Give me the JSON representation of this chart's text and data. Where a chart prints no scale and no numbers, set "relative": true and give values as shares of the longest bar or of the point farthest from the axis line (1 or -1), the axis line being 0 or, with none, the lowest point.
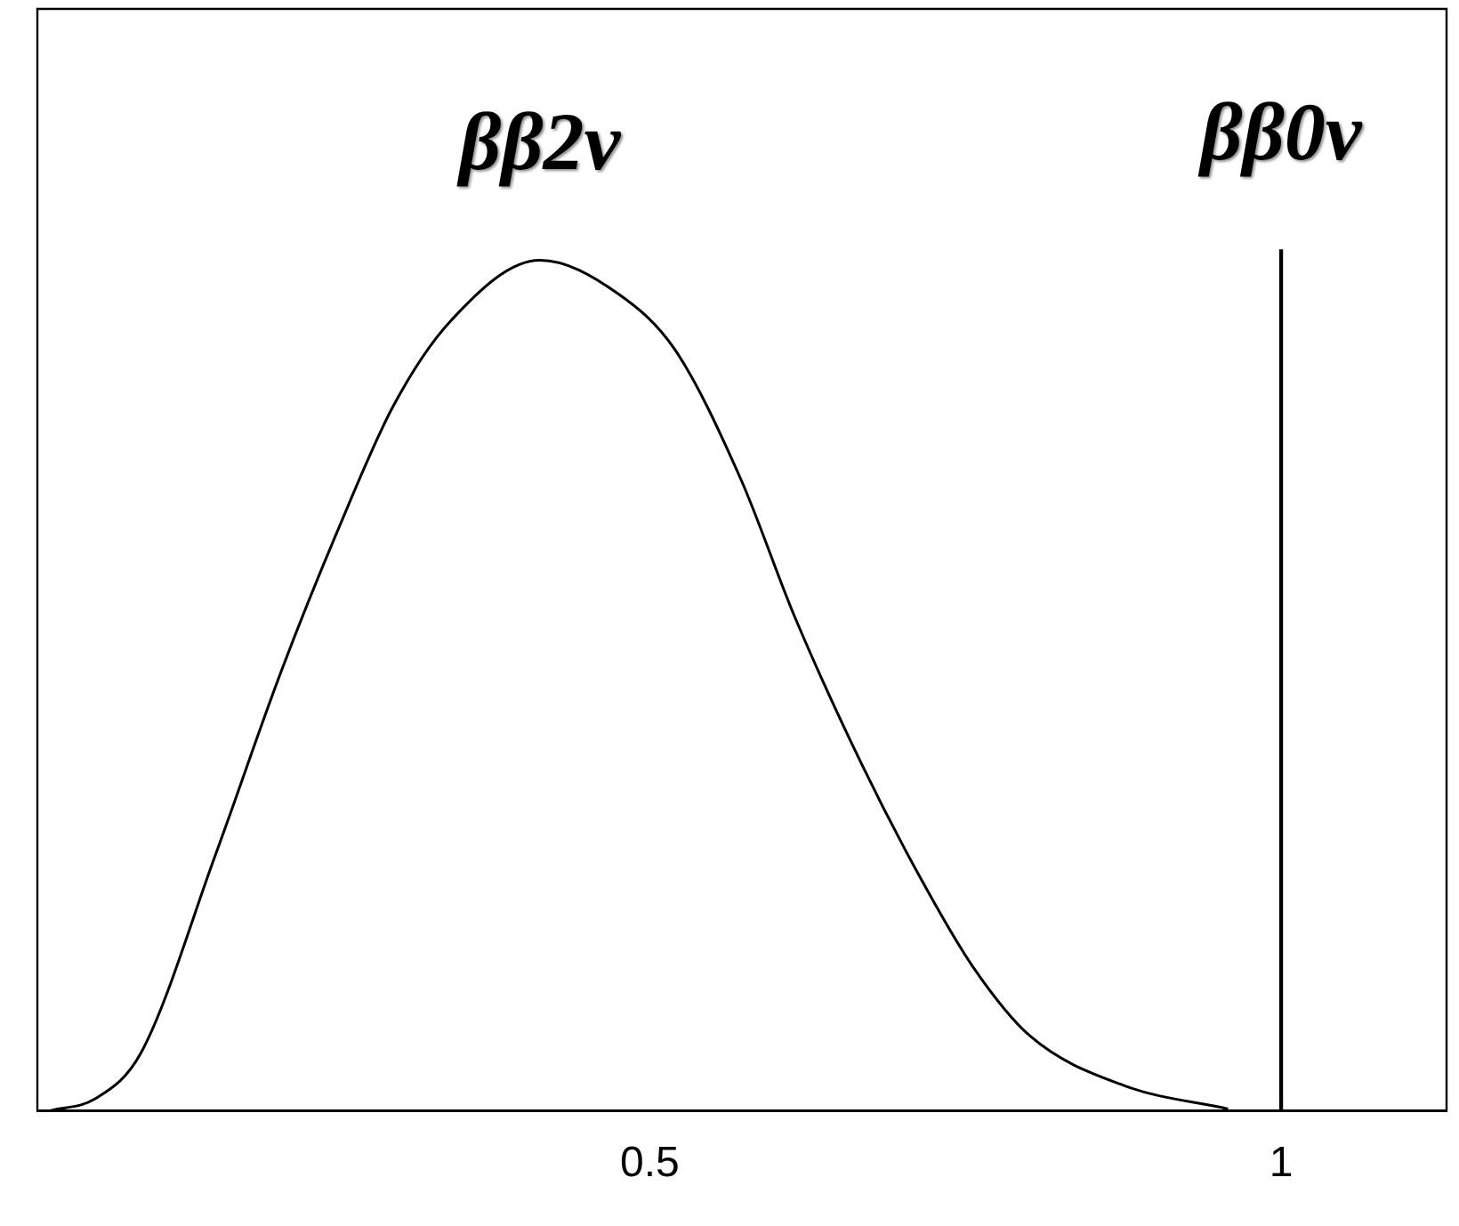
{
  "chart_data": {
    "type": "line",
    "relative": true,
    "xlim": [
      0.015,
      1.131
    ],
    "xticks": [
      0.5,
      1
    ],
    "series": [
      {
        "name": "ββ2ν",
        "color": "#000000",
        "x": [
          0.025,
          0.061,
          0.097,
          0.156,
          0.208,
          0.252,
          0.297,
          0.342,
          0.413,
          0.475,
          0.52,
          0.572,
          0.615,
          0.668,
          0.713,
          0.756,
          0.801,
          0.876,
          0.958
        ],
        "values": [
          0,
          0.014,
          0.067,
          0.297,
          0.51,
          0.671,
          0.819,
          0.917,
          0.988,
          0.949,
          0.884,
          0.734,
          0.573,
          0.402,
          0.274,
          0.167,
          0.087,
          0.029,
          0.002
        ]
      },
      {
        "name": "ββ0ν",
        "type": "bar",
        "color": "#000000",
        "x": [
          1
        ],
        "values": [
          1
        ]
      }
    ],
    "grid": false,
    "legend": false,
    "marker": "none",
    "line_style": "solid"
  }
}
